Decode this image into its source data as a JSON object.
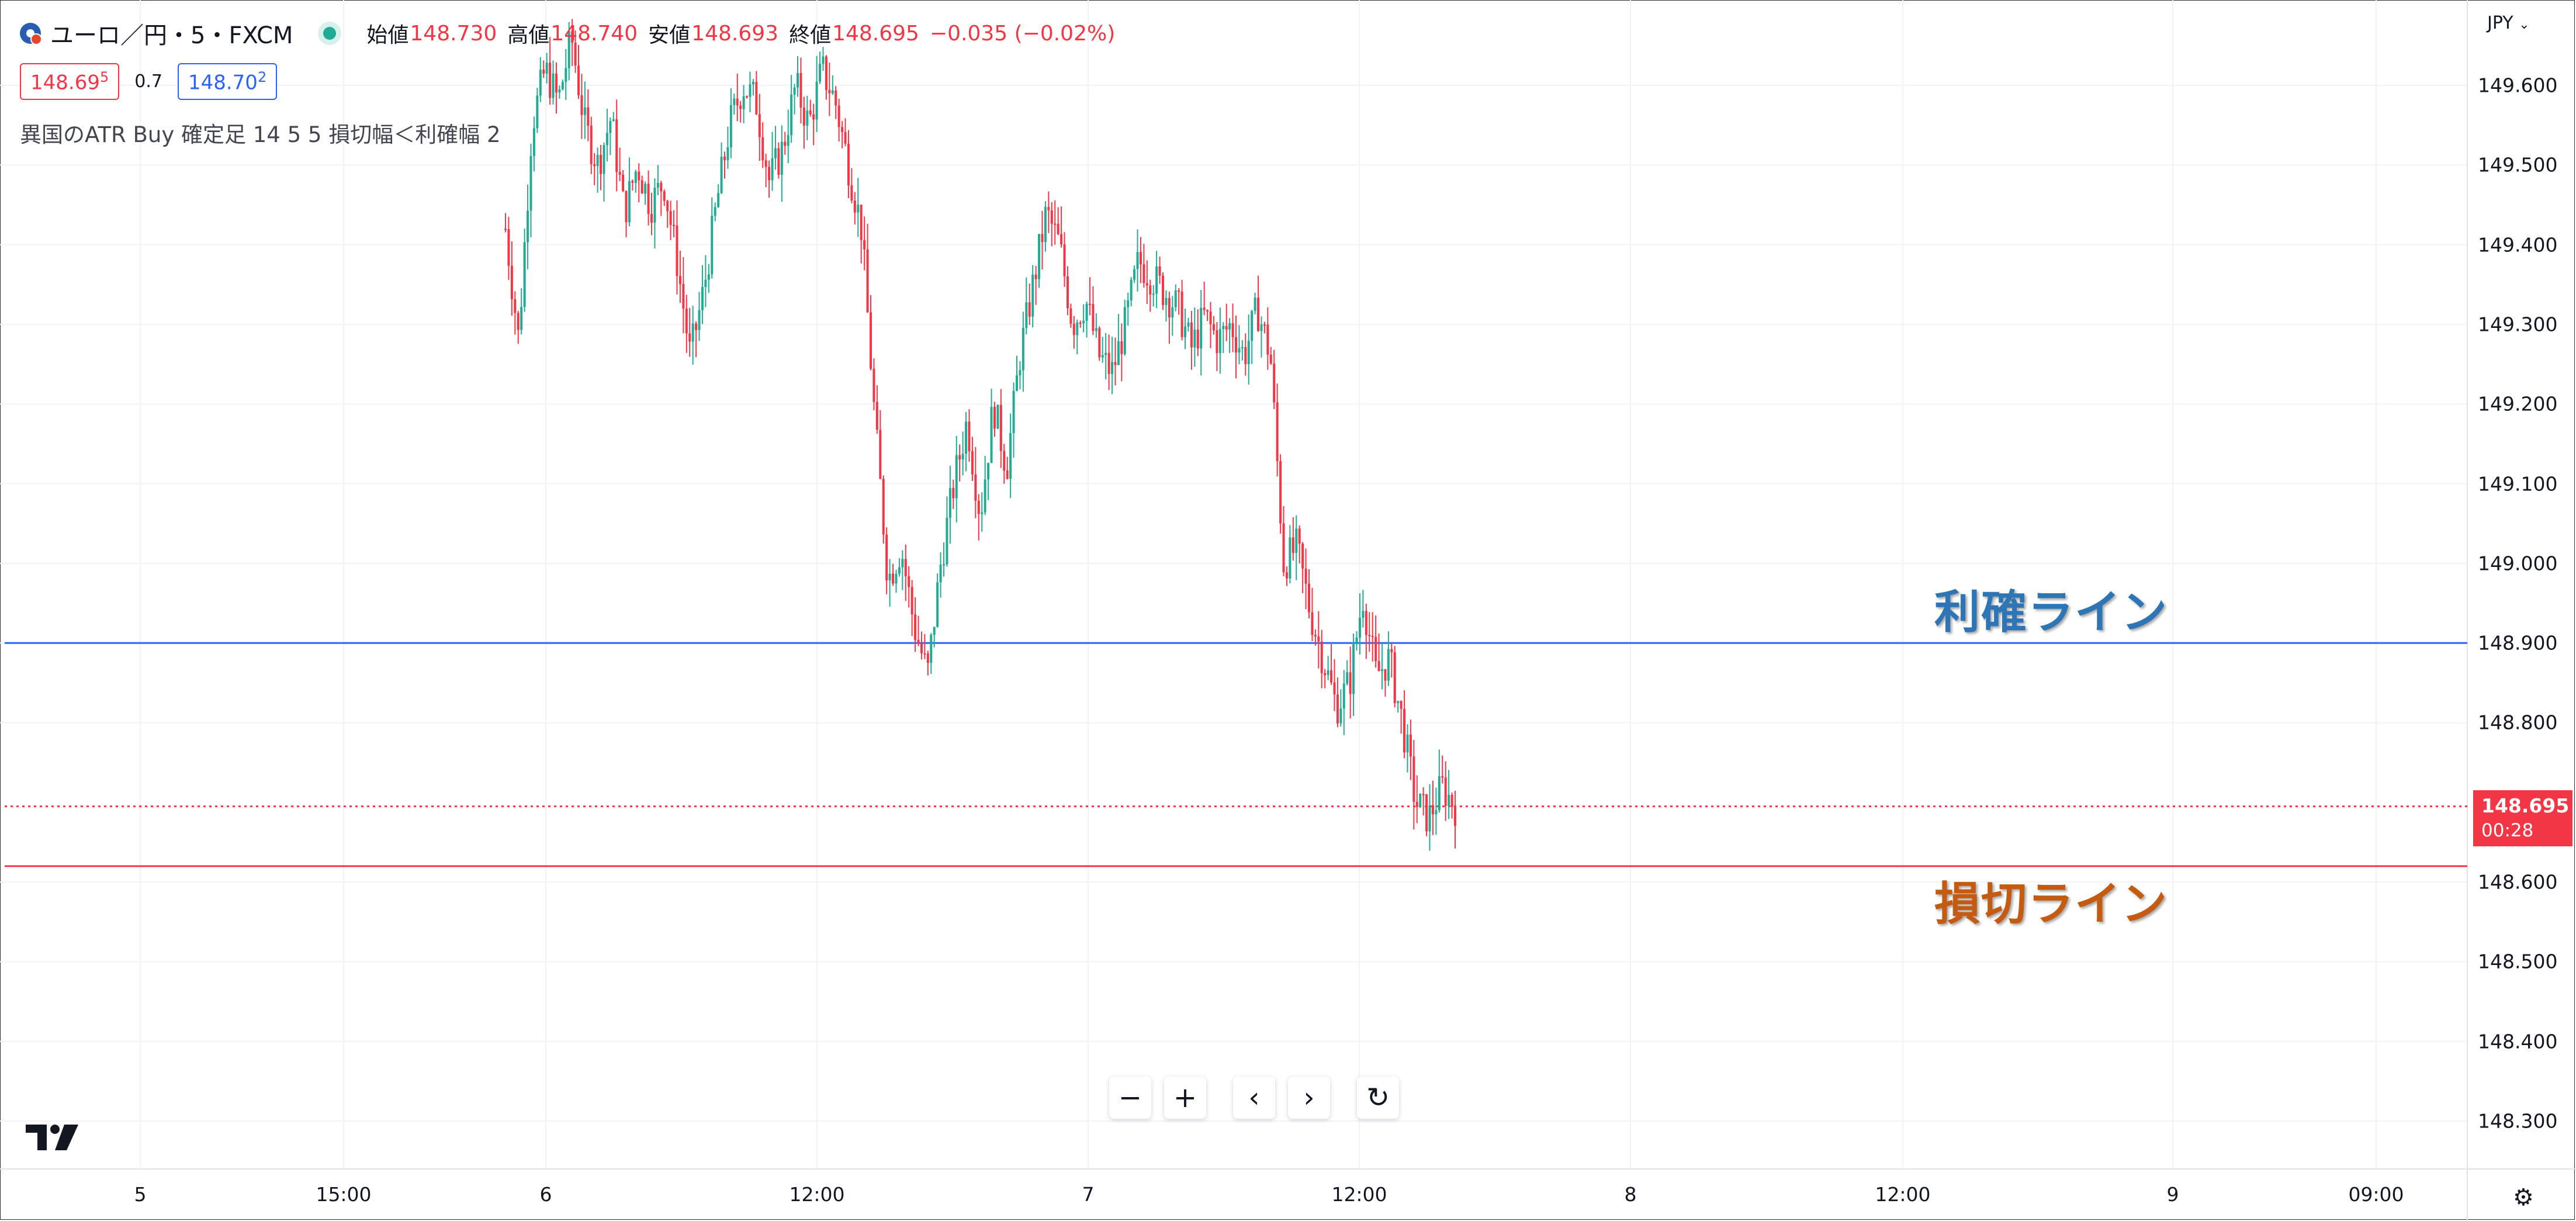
{
  "header": {
    "symbol_title": "ユーロ／円・5・FXCM",
    "ohlc": {
      "open_label": "始値",
      "open": "148.730",
      "high_label": "高値",
      "high": "148.740",
      "low_label": "安値",
      "low": "148.693",
      "close_label": "終値",
      "close": "148.695",
      "change": "−0.035 (−0.02%)"
    },
    "sell_price": "148.69",
    "sell_price_sup": "5",
    "spread": "0.7",
    "buy_price": "148.70",
    "buy_price_sup": "2",
    "indicator": "異国のATR Buy 確定足 14 5 5 損切幅＜利確幅 2"
  },
  "price_axis": {
    "currency": "JPY",
    "ticks": [
      "149.600",
      "149.500",
      "149.400",
      "149.300",
      "149.200",
      "149.100",
      "149.000",
      "148.900",
      "148.800",
      "148.600",
      "148.500",
      "148.400",
      "148.300"
    ],
    "current_price": "148.695",
    "countdown": "00:28"
  },
  "time_axis": {
    "ticks": [
      "5",
      "15:00",
      "6",
      "12:00",
      "7",
      "12:00",
      "8",
      "12:00",
      "9",
      "09:00"
    ]
  },
  "annotations": {
    "take_profit": "利確ライン",
    "stop_loss": "損切ライン"
  },
  "nav_buttons": {
    "zoom_out": "−",
    "zoom_in": "+",
    "scroll_left": "‹",
    "scroll_right": "›",
    "reset": "↻"
  },
  "colors": {
    "up": "#22ab94",
    "down": "#f23645",
    "take_profit_line": "#2962ff",
    "stop_loss_line": "#f23645",
    "take_profit_text": "#2e75b6",
    "stop_loss_text": "#c55a11"
  },
  "chart_data": {
    "type": "line",
    "title": "ユーロ／円・5・FXCM",
    "ylim": [
      148.23,
      149.7
    ],
    "y_ticks": [
      149.6,
      149.5,
      149.4,
      149.3,
      149.2,
      149.1,
      149.0,
      148.9,
      148.8,
      148.6,
      148.5,
      148.4,
      148.3
    ],
    "x_ticks": [
      "5",
      "15:00",
      "6",
      "12:00",
      "7",
      "12:00",
      "8",
      "12:00",
      "9",
      "09:00"
    ],
    "horizontal_lines": [
      {
        "name": "利確ライン",
        "price": 148.9
      },
      {
        "name": "損切ライン",
        "price": 148.62
      },
      {
        "name": "current",
        "price": 148.695
      }
    ],
    "series": [
      {
        "values": [
          149.42,
          149.28,
          149.55,
          149.62,
          149.58,
          149.66,
          149.55,
          149.5,
          149.56,
          149.44,
          149.5,
          149.45,
          149.48,
          149.38,
          149.26,
          149.34,
          149.45,
          149.55,
          149.6,
          149.58,
          149.48,
          149.52,
          149.6,
          149.55,
          149.62,
          149.58,
          149.5,
          149.42,
          149.18,
          148.98,
          149.02,
          148.92,
          148.86,
          149.0,
          149.1,
          149.18,
          149.06,
          149.2,
          149.12,
          149.26,
          149.35,
          149.44,
          149.4,
          149.3,
          149.33,
          149.26,
          149.24,
          149.3,
          149.38,
          149.36,
          149.34,
          149.32,
          149.27,
          149.31,
          149.28,
          149.3,
          149.26,
          149.32,
          149.26,
          149.0,
          149.02,
          148.94,
          148.88,
          148.82,
          148.85,
          148.96,
          148.86,
          148.88,
          148.8,
          148.7,
          148.68,
          148.72,
          148.695
        ]
      }
    ]
  }
}
